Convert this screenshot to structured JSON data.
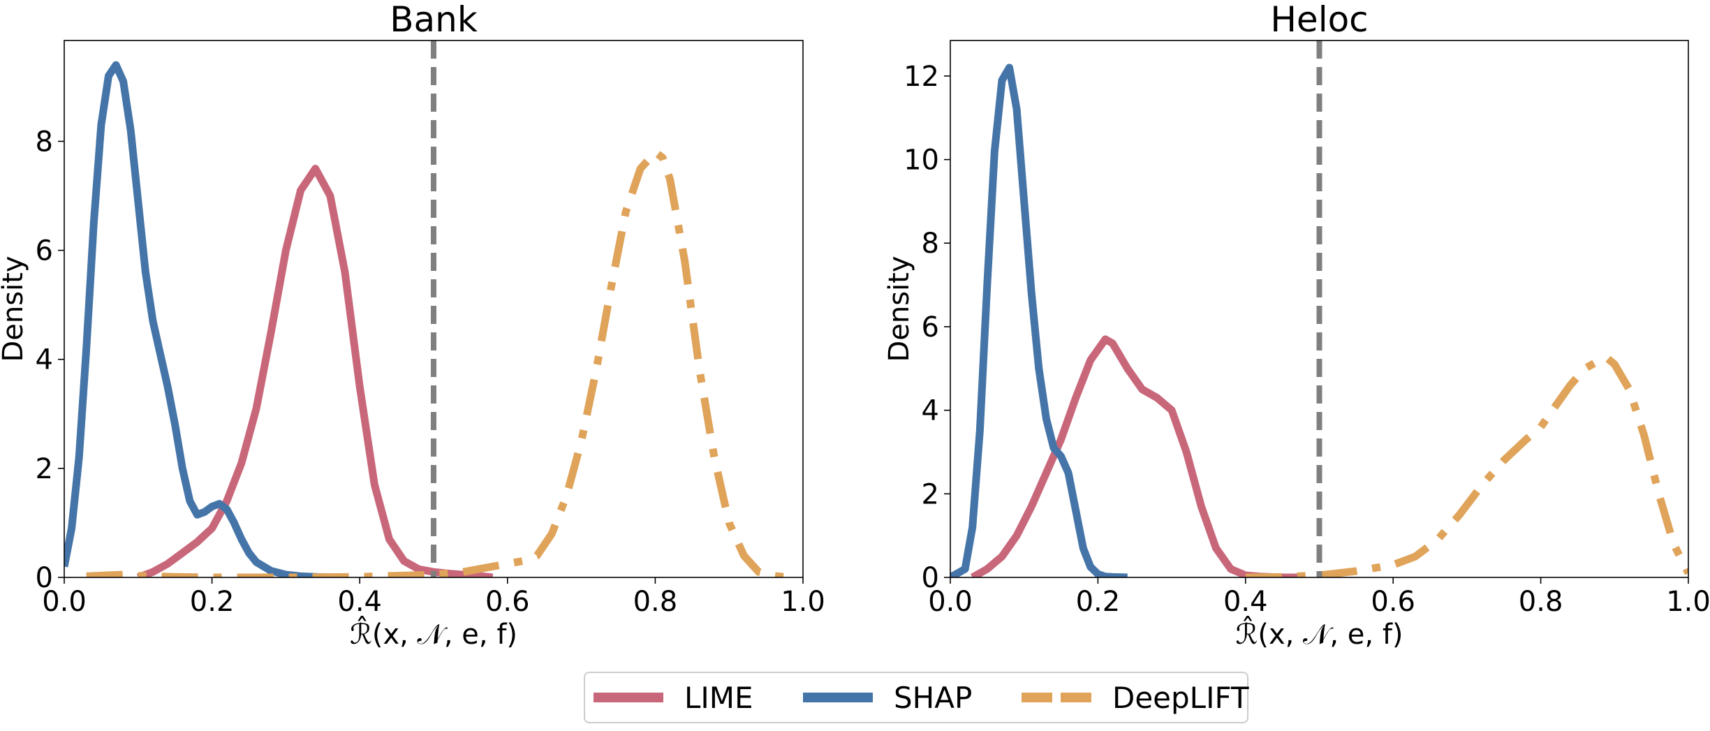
{
  "chart_data": [
    {
      "type": "line",
      "title": "Bank",
      "xlabel": "ℛ̂(x, 𝒩, e, f)",
      "ylabel": "Density",
      "xlim": [
        0.0,
        1.0
      ],
      "ylim": [
        0,
        9.85
      ],
      "xticks": [
        "0.0",
        "0.2",
        "0.4",
        "0.6",
        "0.8",
        "1.0"
      ],
      "yticks": [
        "0",
        "2",
        "4",
        "6",
        "8"
      ],
      "ytick_values": [
        0,
        2,
        4,
        6,
        8
      ],
      "vline": 0.5,
      "series": [
        {
          "name": "LIME",
          "color": "#c9677a",
          "style": "solid",
          "x": [
            0.1,
            0.12,
            0.14,
            0.16,
            0.18,
            0.2,
            0.22,
            0.24,
            0.26,
            0.28,
            0.3,
            0.32,
            0.34,
            0.36,
            0.38,
            0.4,
            0.42,
            0.44,
            0.46,
            0.48,
            0.5,
            0.52,
            0.54,
            0.56,
            0.58
          ],
          "y": [
            0.0,
            0.1,
            0.25,
            0.45,
            0.65,
            0.9,
            1.4,
            2.1,
            3.1,
            4.5,
            6.0,
            7.1,
            7.5,
            7.0,
            5.6,
            3.5,
            1.7,
            0.7,
            0.3,
            0.15,
            0.1,
            0.07,
            0.05,
            0.03,
            0.0
          ]
        },
        {
          "name": "SHAP",
          "color": "#4575a8",
          "style": "solid",
          "x": [
            0.0,
            0.01,
            0.02,
            0.03,
            0.04,
            0.05,
            0.06,
            0.07,
            0.08,
            0.09,
            0.1,
            0.11,
            0.12,
            0.13,
            0.14,
            0.15,
            0.16,
            0.17,
            0.18,
            0.19,
            0.2,
            0.21,
            0.22,
            0.23,
            0.24,
            0.25,
            0.26,
            0.28,
            0.3,
            0.32,
            0.34,
            0.36
          ],
          "y": [
            0.2,
            0.9,
            2.2,
            4.2,
            6.5,
            8.3,
            9.2,
            9.4,
            9.1,
            8.2,
            6.9,
            5.6,
            4.7,
            4.1,
            3.5,
            2.8,
            2.0,
            1.4,
            1.15,
            1.2,
            1.3,
            1.35,
            1.25,
            1.0,
            0.7,
            0.45,
            0.28,
            0.12,
            0.05,
            0.02,
            0.01,
            0.0
          ]
        },
        {
          "name": "DeepLIFT",
          "color": "#dfa35a",
          "style": "dashdot",
          "x": [
            0.03,
            0.06,
            0.08,
            0.1,
            0.12,
            0.15,
            0.2,
            0.3,
            0.4,
            0.5,
            0.54,
            0.58,
            0.62,
            0.64,
            0.66,
            0.68,
            0.7,
            0.72,
            0.74,
            0.76,
            0.78,
            0.8,
            0.81,
            0.82,
            0.84,
            0.86,
            0.88,
            0.9,
            0.92,
            0.94,
            0.96,
            0.98
          ],
          "y": [
            0.02,
            0.04,
            0.05,
            0.03,
            0.02,
            0.01,
            0.0,
            0.0,
            0.01,
            0.05,
            0.1,
            0.2,
            0.3,
            0.4,
            0.8,
            1.5,
            2.5,
            3.8,
            5.3,
            6.7,
            7.5,
            7.8,
            7.7,
            7.3,
            5.8,
            3.8,
            2.2,
            1.0,
            0.4,
            0.1,
            0.03,
            0.0
          ]
        }
      ]
    },
    {
      "type": "line",
      "title": "Heloc",
      "xlabel": "ℛ̂(x, 𝒩, e, f)",
      "ylabel": "Density",
      "xlim": [
        0.0,
        1.0
      ],
      "ylim": [
        0,
        12.85
      ],
      "xticks": [
        "0.0",
        "0.2",
        "0.4",
        "0.6",
        "0.8",
        "1.0"
      ],
      "yticks": [
        "0",
        "2",
        "4",
        "6",
        "8",
        "10",
        "12"
      ],
      "ytick_values": [
        0,
        2,
        4,
        6,
        8,
        10,
        12
      ],
      "vline": 0.5,
      "series": [
        {
          "name": "LIME",
          "color": "#c9677a",
          "style": "solid",
          "x": [
            0.03,
            0.05,
            0.07,
            0.09,
            0.11,
            0.13,
            0.15,
            0.17,
            0.19,
            0.21,
            0.22,
            0.24,
            0.26,
            0.28,
            0.3,
            0.32,
            0.34,
            0.36,
            0.38,
            0.4,
            0.42,
            0.45,
            0.48
          ],
          "y": [
            0.0,
            0.2,
            0.5,
            1.0,
            1.7,
            2.5,
            3.3,
            4.3,
            5.2,
            5.7,
            5.6,
            5.0,
            4.5,
            4.3,
            4.0,
            3.0,
            1.7,
            0.7,
            0.2,
            0.05,
            0.02,
            0.0,
            0.0
          ]
        },
        {
          "name": "SHAP",
          "color": "#4575a8",
          "style": "solid",
          "x": [
            0.0,
            0.02,
            0.03,
            0.04,
            0.05,
            0.06,
            0.07,
            0.08,
            0.09,
            0.1,
            0.11,
            0.12,
            0.13,
            0.14,
            0.15,
            0.16,
            0.17,
            0.18,
            0.19,
            0.2,
            0.21,
            0.22,
            0.24
          ],
          "y": [
            0.0,
            0.2,
            1.2,
            3.5,
            7.0,
            10.2,
            11.9,
            12.2,
            11.2,
            9.0,
            6.8,
            5.0,
            3.8,
            3.1,
            2.9,
            2.5,
            1.6,
            0.7,
            0.25,
            0.08,
            0.02,
            0.01,
            0.0
          ]
        },
        {
          "name": "DeepLIFT",
          "color": "#dfa35a",
          "style": "dashdot",
          "x": [
            0.4,
            0.45,
            0.5,
            0.55,
            0.6,
            0.63,
            0.66,
            0.69,
            0.72,
            0.75,
            0.78,
            0.8,
            0.82,
            0.84,
            0.86,
            0.88,
            0.89,
            0.9,
            0.92,
            0.94,
            0.96,
            0.98,
            1.0
          ],
          "y": [
            0.0,
            0.01,
            0.05,
            0.15,
            0.3,
            0.5,
            0.9,
            1.5,
            2.2,
            2.8,
            3.3,
            3.6,
            4.1,
            4.6,
            5.0,
            5.2,
            5.25,
            5.1,
            4.5,
            3.4,
            2.0,
            0.8,
            0.1
          ]
        }
      ]
    }
  ],
  "legend": {
    "items": [
      {
        "label": "LIME",
        "color": "#c9677a",
        "style": "solid"
      },
      {
        "label": "SHAP",
        "color": "#4575a8",
        "style": "solid"
      },
      {
        "label": "DeepLIFT",
        "color": "#dfa35a",
        "style": "dashed"
      }
    ]
  },
  "vline_color": "#7f7f7f"
}
